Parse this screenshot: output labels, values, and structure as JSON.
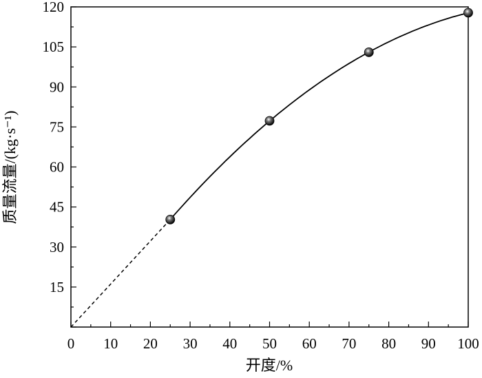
{
  "chart_data": {
    "type": "scatter",
    "xlabel": "开度/%",
    "ylabel": "质量流量/(kg·s⁻¹)",
    "xlim": [
      0,
      100
    ],
    "ylim": [
      0,
      120
    ],
    "xticks": [
      0,
      10,
      20,
      30,
      40,
      50,
      60,
      70,
      80,
      90,
      100
    ],
    "yticks": [
      15,
      30,
      45,
      60,
      75,
      90,
      105,
      120
    ],
    "grid": false,
    "points": {
      "x": [
        25,
        50,
        75,
        100
      ],
      "y": [
        40.3,
        77.3,
        103.0,
        117.8
      ]
    },
    "fit": "solid smooth curve through points from x=25 to 100",
    "extrapolation": {
      "style": "dashed",
      "from": [
        0,
        0
      ],
      "to": [
        25,
        40.3
      ]
    },
    "colors": {
      "line": "#000000",
      "marker": "#222222"
    }
  }
}
